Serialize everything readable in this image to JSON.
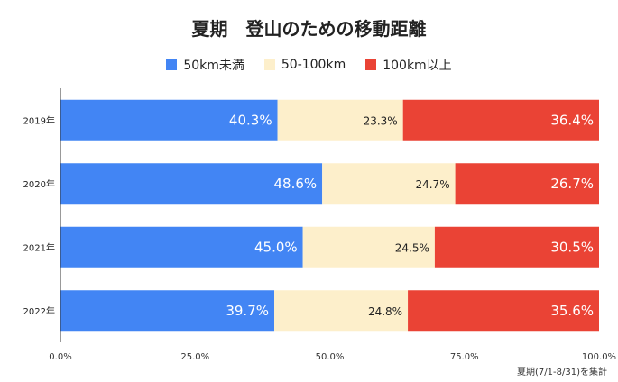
{
  "chart_data": {
    "type": "bar",
    "orientation": "horizontal",
    "stacked": true,
    "title": "夏期　登山のための移動距離",
    "categories": [
      "2019年",
      "2020年",
      "2021年",
      "2022年"
    ],
    "series": [
      {
        "name": "50km未満",
        "color": "#4285f4",
        "values": [
          40.3,
          48.6,
          45.0,
          39.7
        ],
        "labels": [
          "40.3%",
          "48.6%",
          "45.0%",
          "39.7%"
        ],
        "label_color": "#ffffff"
      },
      {
        "name": "50-100km",
        "color": "#fdefcb",
        "values": [
          23.3,
          24.7,
          24.5,
          24.8
        ],
        "labels": [
          "23.3%",
          "24.7%",
          "24.5%",
          "24.8%"
        ],
        "label_color": "#222222"
      },
      {
        "name": "100km以上",
        "color": "#ea4335",
        "values": [
          36.4,
          26.7,
          30.5,
          35.6
        ],
        "labels": [
          "36.4%",
          "26.7%",
          "30.5%",
          "35.6%"
        ],
        "label_color": "#ffffff"
      }
    ],
    "xlim": [
      0,
      100
    ],
    "xticks": [
      0,
      25,
      50,
      75,
      100
    ],
    "xtick_labels": [
      "0.0%",
      "25.0%",
      "50.0%",
      "75.0%",
      "100.0%"
    ],
    "legend_position": "top-center",
    "note": "夏期(7/1-8/31)を集計"
  }
}
